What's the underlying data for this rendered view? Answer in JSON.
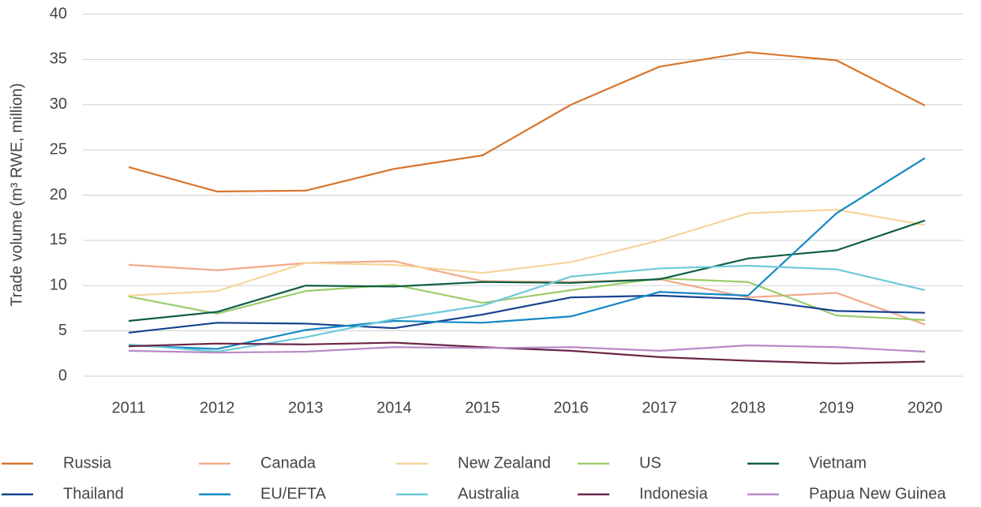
{
  "chart_data": {
    "type": "line",
    "y_label": "Trade volume (m³ RWE, million)",
    "categories": [
      "2011",
      "2012",
      "2013",
      "2014",
      "2015",
      "2016",
      "2017",
      "2018",
      "2019",
      "2020"
    ],
    "ylim": [
      0,
      40
    ],
    "yticks": [
      0,
      5,
      10,
      15,
      20,
      25,
      30,
      35,
      40
    ],
    "grid": true,
    "legend": "bottom",
    "series": [
      {
        "name": "Russia",
        "color": "#d8742b",
        "values": [
          23.1,
          20.4,
          20.5,
          22.9,
          24.4,
          30.0,
          34.2,
          35.8,
          34.9,
          29.9
        ]
      },
      {
        "name": "Canada",
        "color": "#f2a98a",
        "values": [
          12.3,
          11.7,
          12.5,
          12.7,
          10.5,
          10.4,
          10.7,
          8.7,
          9.2,
          5.7
        ]
      },
      {
        "name": "New Zealand",
        "color": "#f5d49a",
        "values": [
          8.9,
          9.4,
          12.5,
          12.3,
          11.4,
          12.6,
          15.0,
          18.0,
          18.4,
          16.7
        ]
      },
      {
        "name": "US",
        "color": "#9ccc6a",
        "values": [
          8.8,
          6.9,
          9.4,
          10.1,
          8.1,
          9.5,
          10.8,
          10.4,
          6.7,
          6.2
        ]
      },
      {
        "name": "Vietnam",
        "color": "#0e5e44",
        "values": [
          6.1,
          7.1,
          10.0,
          9.9,
          10.4,
          10.3,
          10.7,
          13.0,
          13.9,
          17.2
        ]
      },
      {
        "name": "Thailand",
        "color": "#15428f",
        "values": [
          4.8,
          5.9,
          5.8,
          5.3,
          6.8,
          8.7,
          8.9,
          8.5,
          7.2,
          7.0
        ]
      },
      {
        "name": "EU/EFTA",
        "color": "#1387c5",
        "values": [
          3.4,
          3.0,
          5.1,
          6.1,
          5.9,
          6.6,
          9.3,
          8.9,
          18.0,
          24.1
        ]
      },
      {
        "name": "Australia",
        "color": "#6ccad8",
        "values": [
          3.5,
          2.7,
          4.3,
          6.3,
          7.8,
          11.0,
          11.9,
          12.2,
          11.8,
          9.5
        ]
      },
      {
        "name": "Indonesia",
        "color": "#6a2446",
        "values": [
          3.3,
          3.6,
          3.5,
          3.7,
          3.2,
          2.8,
          2.1,
          1.7,
          1.4,
          1.6
        ]
      },
      {
        "name": "Papua New Guinea",
        "color": "#b88ac8",
        "values": [
          2.8,
          2.6,
          2.7,
          3.2,
          3.1,
          3.2,
          2.8,
          3.4,
          3.2,
          2.7
        ]
      }
    ]
  }
}
